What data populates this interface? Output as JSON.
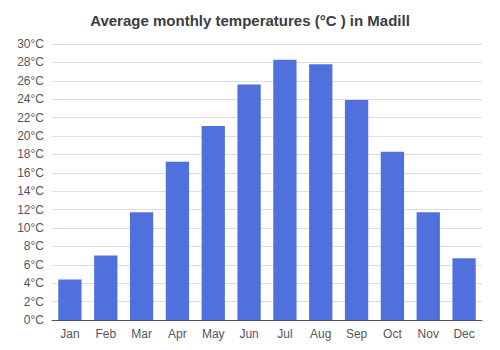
{
  "chart_data": {
    "type": "bar",
    "title": "Average monthly temperatures (°C ) in Madill",
    "categories": [
      "Jan",
      "Feb",
      "Mar",
      "Apr",
      "May",
      "Jun",
      "Jul",
      "Aug",
      "Sep",
      "Oct",
      "Nov",
      "Dec"
    ],
    "values": [
      4.4,
      7.0,
      11.7,
      17.2,
      21.1,
      25.6,
      28.3,
      27.8,
      23.9,
      18.3,
      11.7,
      6.7
    ],
    "ylim": [
      0,
      30
    ],
    "yticks": [
      {
        "value": 0,
        "label": "0°C"
      },
      {
        "value": 2,
        "label": "2°C"
      },
      {
        "value": 4,
        "label": "4°C"
      },
      {
        "value": 6,
        "label": "6°C"
      },
      {
        "value": 8,
        "label": "8°C"
      },
      {
        "value": 10,
        "label": "10°C"
      },
      {
        "value": 12,
        "label": "12°C"
      },
      {
        "value": 14,
        "label": "14°C"
      },
      {
        "value": 16,
        "label": "16°C"
      },
      {
        "value": 18,
        "label": "18°C"
      },
      {
        "value": 20,
        "label": "20°C"
      },
      {
        "value": 22,
        "label": "22°C"
      },
      {
        "value": 24,
        "label": "24°C"
      },
      {
        "value": 26,
        "label": "26°C"
      },
      {
        "value": 28,
        "label": "28°C"
      },
      {
        "value": 30,
        "label": "30°C"
      }
    ],
    "grid": true
  }
}
